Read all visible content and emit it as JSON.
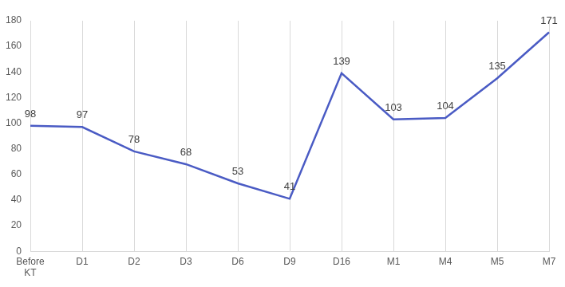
{
  "chart_data": {
    "type": "line",
    "categories": [
      "Before KT",
      "D1",
      "D2",
      "D3",
      "D6",
      "D9",
      "D16",
      "M1",
      "M4",
      "M5",
      "M7"
    ],
    "values": [
      98,
      97,
      78,
      68,
      53,
      41,
      139,
      103,
      104,
      135,
      171
    ],
    "color": "#4a5bc4",
    "ylim": [
      0,
      180
    ],
    "yticks": [
      0,
      20,
      40,
      60,
      80,
      100,
      120,
      140,
      160,
      180
    ],
    "grid": "x",
    "data_labels": true
  }
}
